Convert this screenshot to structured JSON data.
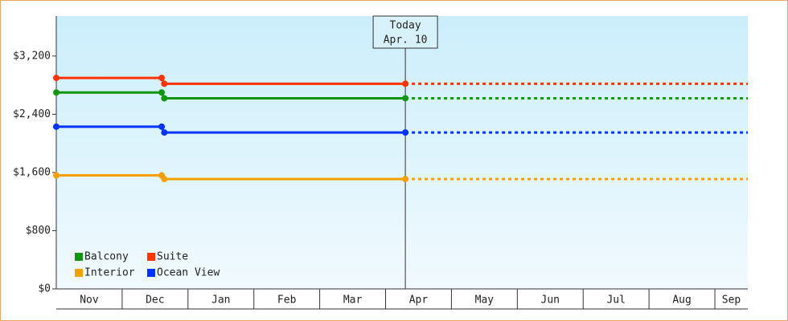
{
  "chart_data": {
    "type": "step-line",
    "categories": [
      "Nov",
      "Dec",
      "Jan",
      "Feb",
      "Mar",
      "Apr",
      "May",
      "Jun",
      "Jul",
      "Aug",
      "Sep"
    ],
    "xlim": [
      0,
      10.5
    ],
    "ylim": [
      0,
      3750
    ],
    "yticks": [
      {
        "value": 0,
        "label": "$0"
      },
      {
        "value": 800,
        "label": "$800"
      },
      {
        "value": 1600,
        "label": "$1,600"
      },
      {
        "value": 2400,
        "label": "$2,400"
      },
      {
        "value": 3200,
        "label": "$3,200"
      }
    ],
    "today": {
      "x": 5.3,
      "label": "Today",
      "date": "Apr. 10"
    },
    "series": [
      {
        "name": "Balcony",
        "color": "#129612",
        "x": [
          0,
          1.6,
          1.64,
          5.3
        ],
        "values": [
          2700,
          2700,
          2620,
          2620
        ]
      },
      {
        "name": "Suite",
        "color": "#ff3300",
        "x": [
          0,
          1.6,
          1.64,
          5.3
        ],
        "values": [
          2900,
          2900,
          2820,
          2820
        ]
      },
      {
        "name": "Interior",
        "color": "#f5a000",
        "x": [
          0,
          1.6,
          1.64,
          5.3
        ],
        "values": [
          1560,
          1560,
          1510,
          1510
        ]
      },
      {
        "name": "Ocean View",
        "color": "#0033ff",
        "x": [
          0,
          1.6,
          1.64,
          5.3
        ],
        "values": [
          2230,
          2230,
          2150,
          2150
        ]
      }
    ]
  }
}
